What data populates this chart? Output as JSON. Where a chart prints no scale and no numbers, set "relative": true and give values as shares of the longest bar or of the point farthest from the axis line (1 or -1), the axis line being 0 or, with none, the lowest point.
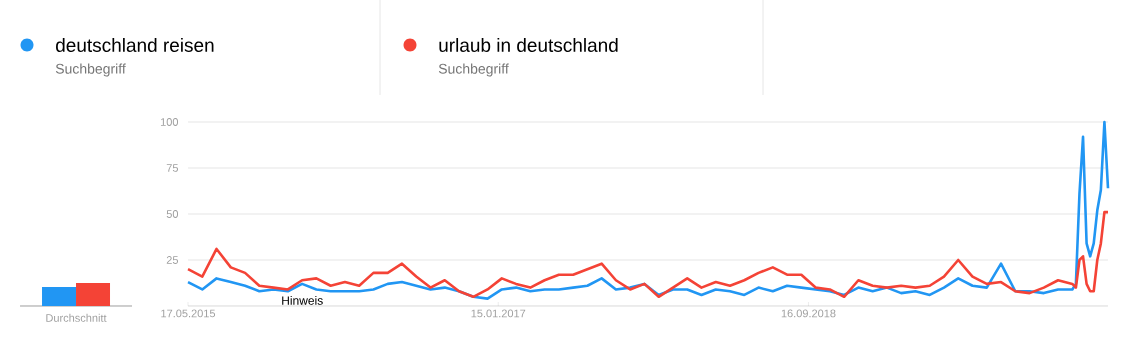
{
  "chart_data": [
    {
      "type": "line",
      "legend": "top",
      "grid": "y",
      "annotations": [
        "Suchbegriff",
        "Suchbegriff",
        "Hinweis"
      ],
      "x": [
        "2015-05-17",
        "2015-06-14",
        "2015-07-12",
        "2015-08-09",
        "2015-09-06",
        "2015-10-04",
        "2015-11-01",
        "2015-11-29",
        "2015-12-27",
        "2016-01-24",
        "2016-02-21",
        "2016-03-20",
        "2016-04-17",
        "2016-05-15",
        "2016-06-12",
        "2016-07-10",
        "2016-08-07",
        "2016-09-04",
        "2016-10-02",
        "2016-10-30",
        "2016-11-27",
        "2016-12-25",
        "2017-01-22",
        "2017-02-19",
        "2017-03-19",
        "2017-04-16",
        "2017-05-14",
        "2017-06-11",
        "2017-07-09",
        "2017-08-06",
        "2017-09-03",
        "2017-10-01",
        "2017-10-29",
        "2017-11-26",
        "2017-12-24",
        "2018-01-21",
        "2018-02-18",
        "2018-03-18",
        "2018-04-15",
        "2018-05-13",
        "2018-06-10",
        "2018-07-08",
        "2018-08-05",
        "2018-09-02",
        "2018-09-30",
        "2018-10-28",
        "2018-11-25",
        "2018-12-23",
        "2019-01-20",
        "2019-02-17",
        "2019-03-17",
        "2019-04-14",
        "2019-05-12",
        "2019-06-09",
        "2019-07-07",
        "2019-08-04",
        "2019-09-01",
        "2019-09-29",
        "2019-10-27",
        "2019-11-24",
        "2019-12-22",
        "2020-01-19",
        "2020-02-16",
        "2020-02-23",
        "2020-03-01",
        "2020-03-08",
        "2020-03-15",
        "2020-03-22",
        "2020-03-29",
        "2020-04-05",
        "2020-04-12",
        "2020-04-19",
        "2020-04-26"
      ],
      "series": [
        {
          "name": "deutschland reisen",
          "color": "#2196f3",
          "values": [
            13,
            9,
            15,
            13,
            11,
            8,
            9,
            8,
            12,
            9,
            8,
            8,
            8,
            9,
            12,
            13,
            11,
            9,
            10,
            8,
            5,
            4,
            9,
            10,
            8,
            9,
            9,
            10,
            11,
            15,
            9,
            10,
            12,
            6,
            9,
            9,
            6,
            9,
            8,
            6,
            10,
            8,
            11,
            10,
            9,
            8,
            6,
            10,
            8,
            10,
            7,
            8,
            6,
            10,
            15,
            11,
            10,
            23,
            8,
            8,
            7,
            9,
            9,
            12,
            61,
            92,
            34,
            27,
            34,
            52,
            63,
            100,
            64
          ]
        },
        {
          "name": "urlaub in deutschland",
          "color": "#f44336",
          "values": [
            20,
            16,
            31,
            21,
            18,
            11,
            10,
            9,
            14,
            15,
            11,
            13,
            11,
            18,
            18,
            23,
            16,
            10,
            14,
            8,
            5,
            9,
            15,
            12,
            10,
            14,
            17,
            17,
            20,
            23,
            14,
            9,
            12,
            5,
            10,
            15,
            10,
            13,
            11,
            14,
            18,
            21,
            17,
            17,
            10,
            9,
            5,
            14,
            11,
            10,
            11,
            10,
            11,
            16,
            25,
            16,
            12,
            13,
            8,
            7,
            10,
            14,
            12,
            10,
            25,
            27,
            12,
            8,
            8,
            25,
            34,
            51,
            51
          ]
        }
      ],
      "xlim": [
        "2015-05-17",
        "2020-04-26"
      ],
      "xticks": [
        {
          "value": "2015-05-17",
          "label": "17.05.2015"
        },
        {
          "value": "2017-01-15",
          "label": "15.01.2017"
        },
        {
          "value": "2018-09-16",
          "label": "16.09.2018"
        }
      ],
      "ylim": [
        0,
        100
      ],
      "yticks": [
        25,
        50,
        75,
        100
      ]
    },
    {
      "type": "bar",
      "relative": true,
      "categories": [
        "Durchschnitt"
      ],
      "series": [
        {
          "color": "#2196f3",
          "values": [
            0.83
          ]
        },
        {
          "color": "#f44336",
          "values": [
            1
          ]
        }
      ]
    }
  ]
}
